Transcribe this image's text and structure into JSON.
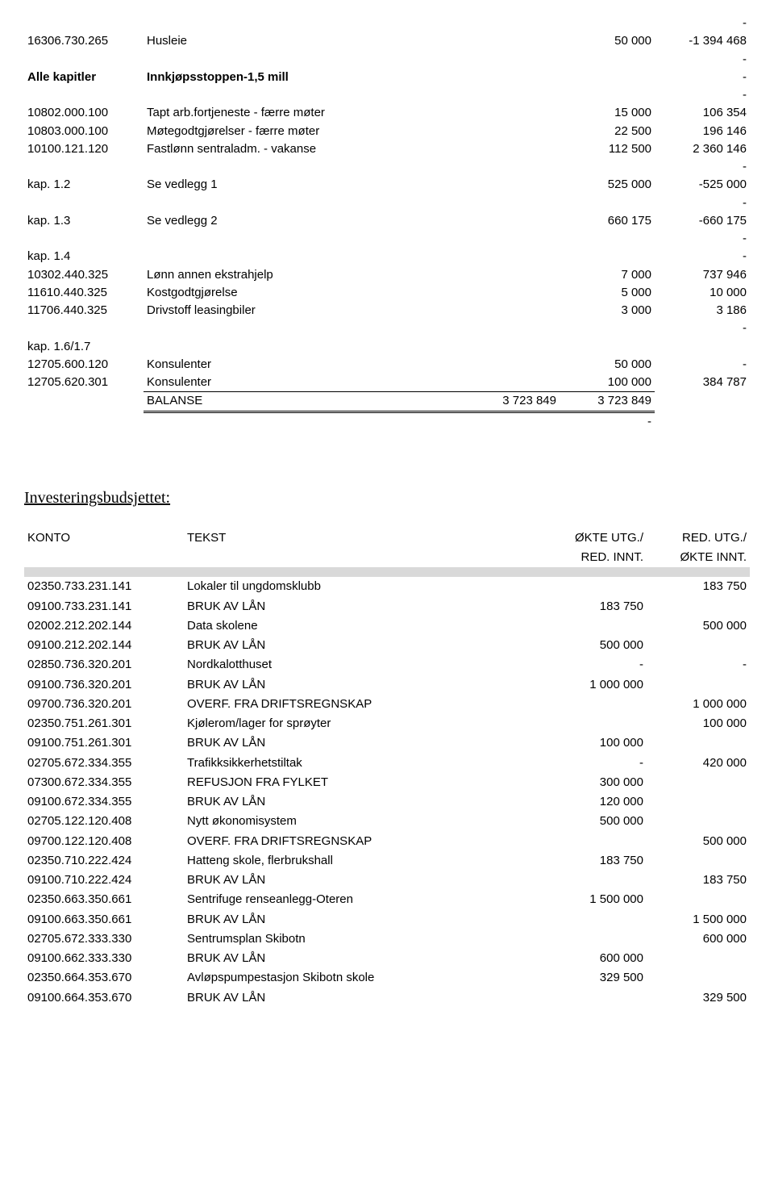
{
  "table1": {
    "rows": [
      {
        "code": "",
        "text": "",
        "n1": "",
        "n2": "",
        "n3": "-",
        "codeClass": "",
        "textClass": ""
      },
      {
        "code": "16306.730.265",
        "text": "Husleie",
        "n1": "",
        "n2": "50 000",
        "n3": "-1 394 468"
      },
      {
        "code": "",
        "text": "",
        "n1": "",
        "n2": "",
        "n3": "-"
      },
      {
        "code": "Alle kapitler",
        "text": "Innkjøpsstoppen-1,5 mill",
        "n1": "",
        "n2": "",
        "n3": "-",
        "codeClass": "bold",
        "textClass": "bold"
      },
      {
        "code": "",
        "text": "",
        "n1": "",
        "n2": "",
        "n3": "-"
      },
      {
        "code": "10802.000.100",
        "text": "Tapt arb.fortjeneste - færre møter",
        "n1": "",
        "n2": "15 000",
        "n3": "106 354"
      },
      {
        "code": "10803.000.100",
        "text": "Møtegodtgjørelser - færre møter",
        "n1": "",
        "n2": "22 500",
        "n3": "196 146"
      },
      {
        "code": "10100.121.120",
        "text": "Fastlønn sentraladm. - vakanse",
        "n1": "",
        "n2": "112 500",
        "n3": "2 360 146"
      },
      {
        "code": "",
        "text": "",
        "n1": "",
        "n2": "",
        "n3": "-"
      },
      {
        "code": "kap. 1.2",
        "text": "Se vedlegg 1",
        "n1": "",
        "n2": "525 000",
        "n3": "-525 000",
        "codeClass": "indent"
      },
      {
        "code": "",
        "text": "",
        "n1": "",
        "n2": "",
        "n3": "-"
      },
      {
        "code": "kap. 1.3",
        "text": "Se vedlegg 2",
        "n1": "",
        "n2": "660 175",
        "n3": "-660 175",
        "codeClass": "indent"
      },
      {
        "code": "",
        "text": "",
        "n1": "",
        "n2": "",
        "n3": "-"
      },
      {
        "code": "kap. 1.4",
        "text": "",
        "n1": "",
        "n2": "",
        "n3": "-",
        "codeClass": "indent"
      },
      {
        "code": "10302.440.325",
        "text": "Lønn annen ekstrahjelp",
        "n1": "",
        "n2": "7 000",
        "n3": "737 946"
      },
      {
        "code": "11610.440.325",
        "text": "Kostgodtgjørelse",
        "n1": "",
        "n2": "5 000",
        "n3": "10 000"
      },
      {
        "code": "11706.440.325",
        "text": "Drivstoff leasingbiler",
        "n1": "",
        "n2": "3 000",
        "n3": "3 186"
      },
      {
        "code": "",
        "text": "",
        "n1": "",
        "n2": "",
        "n3": "-"
      },
      {
        "code": "kap. 1.6/1.7",
        "text": "",
        "n1": "",
        "n2": "",
        "n3": "",
        "codeClass": "indent"
      },
      {
        "code": "12705.600.120",
        "text": "Konsulenter",
        "n1": "",
        "n2": "50 000",
        "n3": "-"
      },
      {
        "code": "12705.620.301",
        "text": "Konsulenter",
        "n1": "",
        "n2": "100 000",
        "n3": "384 787"
      }
    ],
    "balanse": {
      "label": "BALANSE",
      "n1": "3 723 849",
      "n2": "3 723 849"
    },
    "trailing_dash": "-"
  },
  "section2": {
    "title": "Investeringsbudsjettet:",
    "headers": {
      "konto": "KONTO",
      "tekst": "TEKST",
      "amt1a": "ØKTE UTG./",
      "amt1b": "RED. INNT.",
      "amt2a": "RED. UTG./",
      "amt2b": "ØKTE INNT."
    },
    "rows": [
      {
        "konto": "02350.733.231.141",
        "tekst": "Lokaler til ungdomsklubb",
        "amt1": "",
        "amt2": "183 750",
        "bold": true
      },
      {
        "konto": "09100.733.231.141",
        "tekst": "BRUK AV LÅN",
        "amt1": "183 750",
        "amt2": ""
      },
      {
        "konto": "02002.212.202.144",
        "tekst": "Data skolene",
        "amt1": "",
        "amt2": "500 000",
        "bold": true
      },
      {
        "konto": "09100.212.202.144",
        "tekst": "BRUK AV LÅN",
        "amt1": "500 000",
        "amt2": ""
      },
      {
        "konto": "02850.736.320.201",
        "tekst": "Nordkalotthuset",
        "amt1": "-",
        "amt2": "-",
        "bold": true
      },
      {
        "konto": "09100.736.320.201",
        "tekst": "BRUK AV LÅN",
        "amt1": "1 000 000",
        "amt2": ""
      },
      {
        "konto": "09700.736.320.201",
        "tekst": "OVERF. FRA DRIFTSREGNSKAP",
        "amt1": "",
        "amt2": "1 000 000"
      },
      {
        "konto": "02350.751.261.301",
        "tekst": "Kjølerom/lager for sprøyter",
        "amt1": "",
        "amt2": "100 000",
        "bold": true
      },
      {
        "konto": "09100.751.261.301",
        "tekst": "BRUK AV LÅN",
        "amt1": "100 000",
        "amt2": ""
      },
      {
        "konto": "02705.672.334.355",
        "tekst": "Trafikksikkerhetstiltak",
        "amt1": "-",
        "amt2": "420 000",
        "bold": true
      },
      {
        "konto": "07300.672.334.355",
        "tekst": "REFUSJON FRA FYLKET",
        "amt1": "300 000",
        "amt2": ""
      },
      {
        "konto": "09100.672.334.355",
        "tekst": "BRUK AV LÅN",
        "amt1": "120 000",
        "amt2": ""
      },
      {
        "konto": "02705.122.120.408",
        "tekst": "Nytt økonomisystem",
        "amt1": "500 000",
        "amt2": "",
        "bold": true
      },
      {
        "konto": "09700.122.120.408",
        "tekst": "OVERF. FRA DRIFTSREGNSKAP",
        "amt1": "",
        "amt2": "500 000"
      },
      {
        "konto": "02350.710.222.424",
        "tekst": "Hatteng skole, flerbrukshall",
        "amt1": "183 750",
        "amt2": "",
        "bold": true
      },
      {
        "konto": "09100.710.222.424",
        "tekst": "BRUK AV LÅN",
        "amt1": "",
        "amt2": "183 750"
      },
      {
        "konto": "02350.663.350.661",
        "tekst": "Sentrifuge renseanlegg-Oteren",
        "amt1": "1 500 000",
        "amt2": "",
        "bold": true
      },
      {
        "konto": "09100.663.350.661",
        "tekst": "BRUK AV LÅN",
        "amt1": "",
        "amt2": "1 500 000"
      },
      {
        "konto": "02705.672.333.330",
        "tekst": "Sentrumsplan Skibotn",
        "amt1": "",
        "amt2": "600 000",
        "bold": true
      },
      {
        "konto": "09100.662.333.330",
        "tekst": "BRUK AV LÅN",
        "amt1": "600 000",
        "amt2": ""
      },
      {
        "konto": "02350.664.353.670",
        "tekst": "Avløpspumpestasjon Skibotn skole",
        "amt1": "329 500",
        "amt2": "",
        "bold": true
      },
      {
        "konto": "09100.664.353.670",
        "tekst": "BRUK AV LÅN",
        "amt1": "",
        "amt2": "329 500"
      }
    ]
  }
}
